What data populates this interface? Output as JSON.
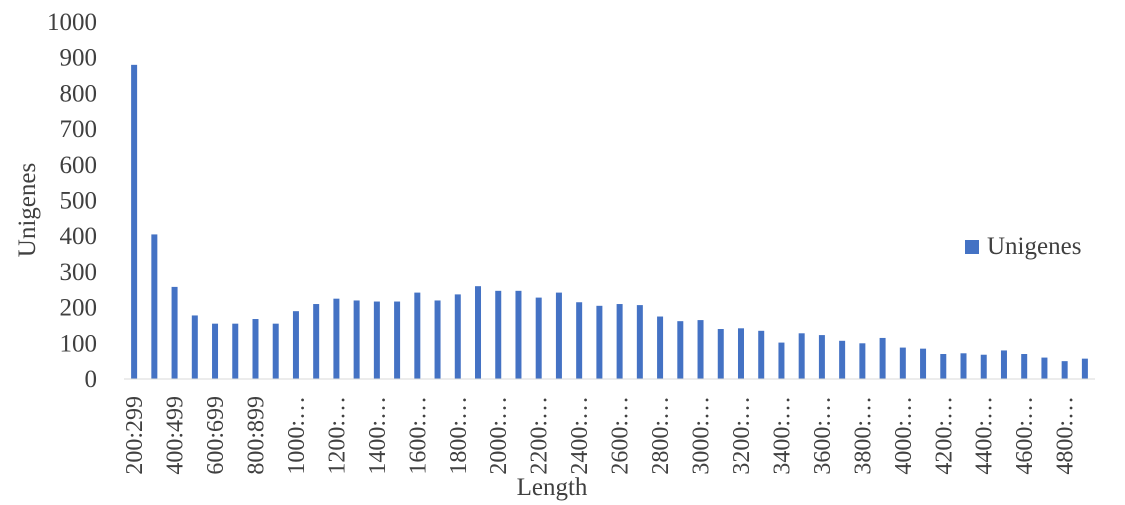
{
  "chart_data": {
    "type": "bar",
    "ylabel": "Unigenes",
    "xlabel": "Length",
    "ylim": [
      0,
      1000
    ],
    "yticks": [
      "0",
      "100",
      "200",
      "300",
      "400",
      "500",
      "600",
      "700",
      "800",
      "900",
      "1000"
    ],
    "categories": [
      "200:299",
      "300:399",
      "400:499",
      "500:599",
      "600:699",
      "700:799",
      "800:899",
      "900:999",
      "1000:…",
      "1100:…",
      "1200:…",
      "1300:…",
      "1400:…",
      "1500:…",
      "1600:…",
      "1700:…",
      "1800:…",
      "1900:…",
      "2000:…",
      "2100:…",
      "2200:…",
      "2300:…",
      "2400:…",
      "2500:…",
      "2600:…",
      "2700:…",
      "2800:…",
      "2900:…",
      "3000:…",
      "3100:…",
      "3200:…",
      "3300:…",
      "3400:…",
      "3500:…",
      "3600:…",
      "3700:…",
      "3800:…",
      "3900:…",
      "4000:…",
      "4100:…",
      "4200:…",
      "4300:…",
      "4400:…",
      "4500:…",
      "4600:…",
      "4700:…",
      "4800:…",
      "4900:…"
    ],
    "tick_labels": [
      "200:299",
      "400:499",
      "600:699",
      "800:899",
      "1000:…",
      "1200:…",
      "1400:…",
      "1600:…",
      "1800:…",
      "2000:…",
      "2200:…",
      "2400:…",
      "2600:…",
      "2800:…",
      "3000:…",
      "3200:…",
      "3400:…",
      "3600:…",
      "3800:…",
      "4000:…",
      "4200:…",
      "4400:…",
      "4600:…",
      "4800:…"
    ],
    "series": [
      {
        "name": "Unigenes",
        "color": "#4472C4",
        "values": [
          880,
          405,
          258,
          178,
          155,
          155,
          168,
          155,
          190,
          210,
          225,
          220,
          217,
          217,
          242,
          220,
          237,
          260,
          247,
          247,
          228,
          242,
          215,
          205,
          210,
          207,
          175,
          162,
          165,
          140,
          142,
          135,
          102,
          128,
          123,
          107,
          100,
          115,
          88,
          85,
          70,
          72,
          68,
          80,
          70,
          60,
          50,
          57
        ]
      }
    ],
    "legend_position": "right"
  }
}
